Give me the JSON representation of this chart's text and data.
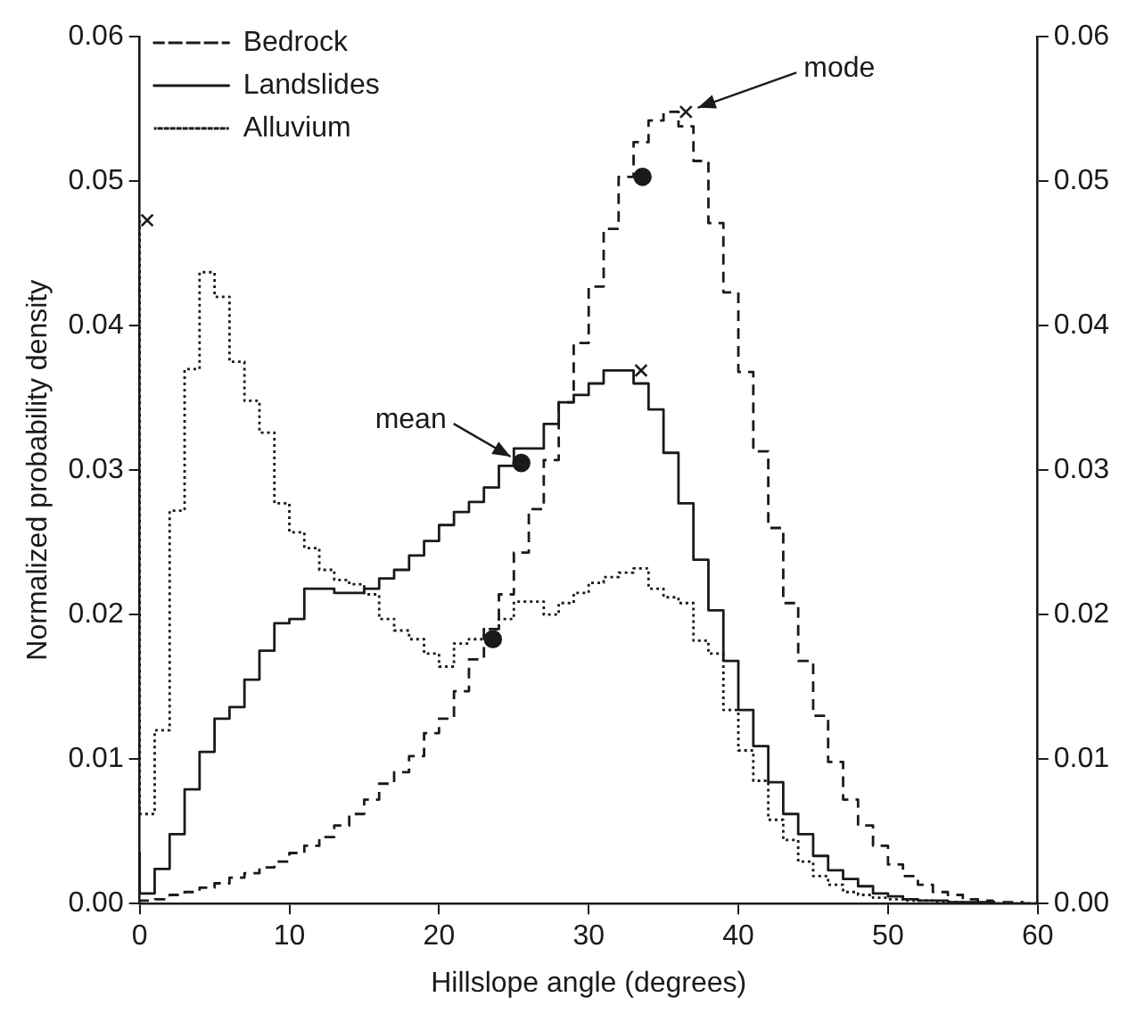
{
  "chart_data": {
    "type": "step",
    "xlabel": "Hillslope angle (degrees)",
    "ylabel": "Normalized probability density",
    "x": [
      0,
      1,
      2,
      3,
      4,
      5,
      6,
      7,
      8,
      9,
      10,
      11,
      12,
      13,
      14,
      15,
      16,
      17,
      18,
      19,
      20,
      21,
      22,
      23,
      24,
      25,
      26,
      27,
      28,
      29,
      30,
      31,
      32,
      33,
      34,
      35,
      36,
      37,
      38,
      39,
      40,
      41,
      42,
      43,
      44,
      45,
      46,
      47,
      48,
      49,
      50,
      51,
      52,
      53,
      54,
      55,
      56,
      57,
      58,
      59,
      60
    ],
    "series": [
      {
        "name": "Bedrock",
        "color": "#1a1a1a",
        "line_style": "dashed",
        "values": [
          0.0001,
          0.0002,
          0.0003,
          0.0006,
          0.0008,
          0.0011,
          0.0014,
          0.0018,
          0.0021,
          0.0025,
          0.0029,
          0.0035,
          0.004,
          0.0046,
          0.0054,
          0.0062,
          0.0072,
          0.0083,
          0.0091,
          0.0102,
          0.0118,
          0.0128,
          0.0147,
          0.0169,
          0.019,
          0.0214,
          0.0243,
          0.0273,
          0.0307,
          0.0347,
          0.0388,
          0.0427,
          0.0467,
          0.0503,
          0.0527,
          0.0542,
          0.0548,
          0.0538,
          0.0514,
          0.0471,
          0.0423,
          0.0368,
          0.0313,
          0.026,
          0.0208,
          0.0168,
          0.013,
          0.0098,
          0.0072,
          0.0054,
          0.004,
          0.0027,
          0.0019,
          0.0013,
          0.0008,
          0.0006,
          0.0003,
          0.0002,
          0.0001,
          0.0001,
          0
        ]
      },
      {
        "name": "Landslides",
        "color": "#1a1a1a",
        "line_style": "solid",
        "values": [
          0.0036,
          0.0007,
          0.0024,
          0.0048,
          0.0079,
          0.0105,
          0.0128,
          0.0136,
          0.0155,
          0.0175,
          0.0194,
          0.0197,
          0.0218,
          0.0218,
          0.0215,
          0.0215,
          0.0218,
          0.0225,
          0.0231,
          0.0241,
          0.0251,
          0.0262,
          0.0271,
          0.0278,
          0.0288,
          0.0303,
          0.0315,
          0.0315,
          0.0332,
          0.0347,
          0.0352,
          0.036,
          0.0369,
          0.0369,
          0.036,
          0.0342,
          0.0312,
          0.0277,
          0.0238,
          0.0203,
          0.0168,
          0.0134,
          0.0109,
          0.0084,
          0.0062,
          0.0048,
          0.0033,
          0.0023,
          0.0017,
          0.0012,
          0.0007,
          0.0005,
          0.0003,
          0.0002,
          0.0002,
          0.0001,
          0.0001,
          0.0001,
          0,
          0,
          0
        ]
      },
      {
        "name": "Alluvium",
        "color": "#1a1a1a",
        "line_style": "dotted",
        "values": [
          0.0473,
          0.0062,
          0.012,
          0.0272,
          0.037,
          0.0437,
          0.042,
          0.0375,
          0.0348,
          0.0326,
          0.0277,
          0.0257,
          0.0246,
          0.0231,
          0.0224,
          0.0221,
          0.0214,
          0.0197,
          0.0189,
          0.0183,
          0.0173,
          0.0164,
          0.018,
          0.0183,
          0.019,
          0.0197,
          0.0209,
          0.0209,
          0.02,
          0.0208,
          0.0215,
          0.0222,
          0.0226,
          0.0229,
          0.0232,
          0.0218,
          0.0212,
          0.0208,
          0.0182,
          0.0173,
          0.0134,
          0.0106,
          0.0085,
          0.0058,
          0.0044,
          0.0029,
          0.0019,
          0.0013,
          0.0008,
          0.0006,
          0.0004,
          0.0003,
          0.0002,
          0.0002,
          0.0001,
          0.0001,
          0,
          0,
          0,
          0,
          0
        ]
      },
      {
        "type": "scatter",
        "color": "#1a1a1a",
        "marker": "circle",
        "x": [
          23.6,
          25.5,
          33.6
        ],
        "values": [
          0.0183,
          0.0305,
          0.0503
        ]
      },
      {
        "type": "scatter",
        "color": "#1a1a1a",
        "marker": "cross",
        "x": [
          0.5,
          33.5,
          36.5
        ],
        "values": [
          0.0473,
          0.0369,
          0.0548
        ]
      }
    ],
    "xlim": [
      0,
      60
    ],
    "xticks": [
      0,
      10,
      20,
      30,
      40,
      50,
      60
    ],
    "ylim": [
      0,
      0.06
    ],
    "yticks": [
      {
        "value": 0,
        "label": "0.00"
      },
      {
        "value": 0.01,
        "label": "0.01"
      },
      {
        "value": 0.02,
        "label": "0.02"
      },
      {
        "value": 0.03,
        "label": "0.03"
      },
      {
        "value": 0.04,
        "label": "0.04"
      },
      {
        "value": 0.05,
        "label": "0.05"
      },
      {
        "value": 0.06,
        "label": "0.06"
      }
    ],
    "y2lim": [
      0,
      0.06
    ],
    "y2ticks": [
      {
        "value": 0,
        "label": "0.00"
      },
      {
        "value": 0.01,
        "label": "0.01"
      },
      {
        "value": 0.02,
        "label": "0.02"
      },
      {
        "value": 0.03,
        "label": "0.03"
      },
      {
        "value": 0.04,
        "label": "0.04"
      },
      {
        "value": 0.05,
        "label": "0.05"
      },
      {
        "value": 0.06,
        "label": "0.06"
      }
    ],
    "legend": "top left",
    "annotations": [
      {
        "text": "mean",
        "x": 25.5,
        "y": 0.0305
      },
      {
        "text": "mode",
        "x": 36.5,
        "y": 0.0548
      }
    ]
  }
}
